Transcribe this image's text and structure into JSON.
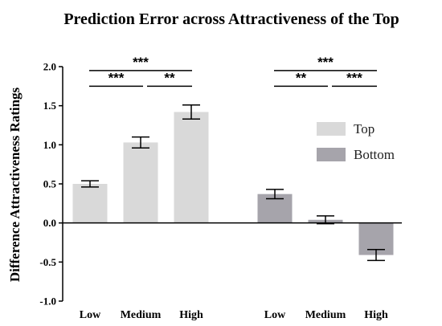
{
  "chart_data": {
    "type": "bar",
    "title": "Prediction Error across Attractiveness of the Top",
    "ylabel": "Difference Attractiveness Ratings",
    "ylim": [
      -1.0,
      2.0
    ],
    "yticks": [
      "-1.0",
      "-0.5",
      "0.0",
      "0.5",
      "1.0",
      "1.5",
      "2.0"
    ],
    "yticks_values": [
      -1.0,
      -0.5,
      0.0,
      0.5,
      1.0,
      1.5,
      2.0
    ],
    "categories": [
      "Low",
      "Medium",
      "High"
    ],
    "series": [
      {
        "name": "Top",
        "color": "#d9d9d9",
        "values": [
          0.5,
          1.03,
          1.42
        ],
        "errors": [
          0.04,
          0.07,
          0.09
        ]
      },
      {
        "name": "Bottom",
        "color": "#a6a4ab",
        "values": [
          0.37,
          0.04,
          -0.41
        ],
        "errors": [
          0.06,
          0.05,
          0.07
        ]
      }
    ],
    "legend": {
      "placement": "right",
      "entries": [
        "Top",
        "Bottom"
      ]
    },
    "grid": false,
    "significance": [
      {
        "group": 0,
        "from": 0,
        "to": 2,
        "label": "***",
        "level": 1.95
      },
      {
        "group": 0,
        "from": 0,
        "to": 1,
        "label": "***",
        "level": 1.75
      },
      {
        "group": 0,
        "from": 1,
        "to": 2,
        "label": "**",
        "level": 1.75
      },
      {
        "group": 1,
        "from": 0,
        "to": 2,
        "label": "***",
        "level": 1.95
      },
      {
        "group": 1,
        "from": 0,
        "to": 1,
        "label": "**",
        "level": 1.75
      },
      {
        "group": 1,
        "from": 1,
        "to": 2,
        "label": "***",
        "level": 1.75
      }
    ]
  }
}
